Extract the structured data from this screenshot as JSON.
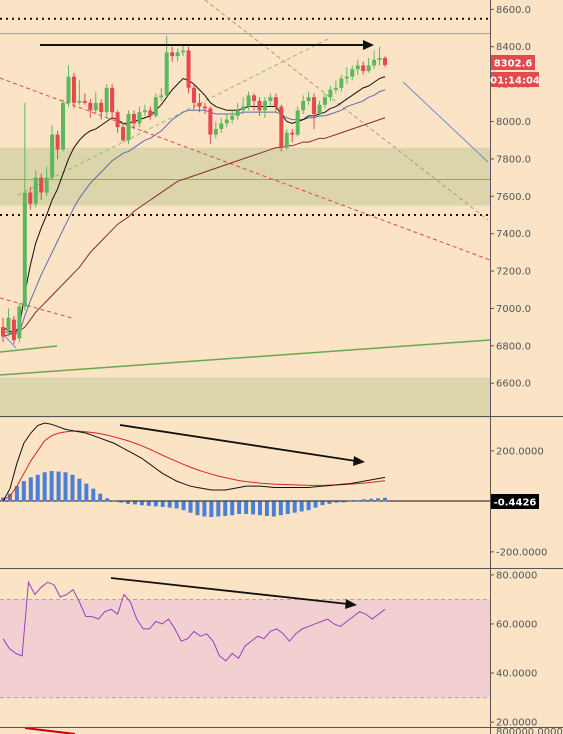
{
  "chart_data": [
    {
      "type": "candlestick",
      "title": "",
      "y_ticks": [
        "8600.0",
        "8400.0",
        "8200.0",
        "8000.0",
        "7800.0",
        "7600.0",
        "7400.0",
        "7200.0",
        "7000.0",
        "6800.0",
        "6600.0"
      ],
      "ylim": [
        6430,
        8650
      ],
      "last_price_label": "8302.6",
      "countdown_label": "01:14:04",
      "dotted_resistance": 8550,
      "dotted_support": 7500,
      "horizontal_lines": [
        8470,
        7690
      ],
      "support_zones": [
        [
          7550,
          7860
        ],
        [
          6410,
          6630
        ]
      ],
      "candles": [
        [
          6900,
          6850,
          6950,
          6820
        ],
        [
          6880,
          6950,
          7000,
          6850
        ],
        [
          6940,
          6830,
          6960,
          6810
        ],
        [
          6840,
          7010,
          7030,
          6820
        ],
        [
          7010,
          7620,
          8100,
          6990
        ],
        [
          7620,
          7560,
          7650,
          7530
        ],
        [
          7560,
          7700,
          7740,
          7540
        ],
        [
          7700,
          7620,
          7720,
          7580
        ],
        [
          7620,
          7700,
          7760,
          7600
        ],
        [
          7700,
          7930,
          7980,
          7690
        ],
        [
          7930,
          7850,
          7950,
          7800
        ],
        [
          7850,
          8100,
          8120,
          7840
        ],
        [
          8100,
          8240,
          8300,
          8080
        ],
        [
          8240,
          8100,
          8260,
          8070
        ],
        [
          8100,
          8110,
          8220,
          8090
        ],
        [
          8110,
          8100,
          8150,
          8090
        ],
        [
          8100,
          8060,
          8120,
          8020
        ],
        [
          8060,
          8100,
          8160,
          8040
        ],
        [
          8100,
          8050,
          8120,
          8010
        ],
        [
          8050,
          8180,
          8200,
          8030
        ],
        [
          8180,
          8050,
          8200,
          8020
        ],
        [
          8050,
          7970,
          8060,
          7940
        ],
        [
          7970,
          7900,
          7990,
          7890
        ],
        [
          7900,
          8040,
          8060,
          7880
        ],
        [
          8040,
          7990,
          8060,
          7960
        ],
        [
          7990,
          8050,
          8080,
          7970
        ],
        [
          8050,
          8060,
          8090,
          8030
        ],
        [
          8060,
          8030,
          8080,
          8010
        ],
        [
          8030,
          8130,
          8150,
          8020
        ],
        [
          8130,
          8140,
          8180,
          8110
        ],
        [
          8140,
          8370,
          8460,
          8130
        ],
        [
          8370,
          8350,
          8400,
          8320
        ],
        [
          8350,
          8370,
          8390,
          8320
        ],
        [
          8370,
          8380,
          8410,
          8350
        ],
        [
          8380,
          8180,
          8400,
          8150
        ],
        [
          8180,
          8100,
          8200,
          8060
        ],
        [
          8100,
          8080,
          8150,
          8050
        ],
        [
          8080,
          8070,
          8100,
          8040
        ],
        [
          8070,
          7930,
          8080,
          7880
        ],
        [
          7930,
          7960,
          8000,
          7910
        ],
        [
          7960,
          7990,
          8020,
          7940
        ],
        [
          7990,
          8010,
          8040,
          7970
        ],
        [
          8010,
          8030,
          8060,
          7990
        ],
        [
          8030,
          8060,
          8100,
          8010
        ],
        [
          8060,
          8080,
          8130,
          8040
        ],
        [
          8080,
          8140,
          8160,
          8060
        ],
        [
          8140,
          8110,
          8150,
          8060
        ],
        [
          8110,
          8060,
          8130,
          8030
        ],
        [
          8060,
          8110,
          8130,
          8020
        ],
        [
          8110,
          8130,
          8150,
          8080
        ],
        [
          8130,
          8080,
          8150,
          8050
        ],
        [
          8080,
          7860,
          8090,
          7840
        ],
        [
          7860,
          7940,
          7960,
          7850
        ],
        [
          7940,
          7930,
          7960,
          7890
        ],
        [
          7930,
          8060,
          8080,
          7920
        ],
        [
          8060,
          8110,
          8140,
          8040
        ],
        [
          8110,
          8130,
          8160,
          8090
        ],
        [
          8130,
          8040,
          8150,
          7960
        ],
        [
          8040,
          8090,
          8110,
          8030
        ],
        [
          8090,
          8130,
          8150,
          8070
        ],
        [
          8130,
          8170,
          8190,
          8110
        ],
        [
          8170,
          8180,
          8220,
          8150
        ],
        [
          8180,
          8230,
          8250,
          8160
        ],
        [
          8230,
          8240,
          8290,
          8200
        ],
        [
          8240,
          8280,
          8300,
          8220
        ],
        [
          8280,
          8300,
          8330,
          8250
        ],
        [
          8300,
          8270,
          8320,
          8250
        ],
        [
          8270,
          8300,
          8340,
          8260
        ],
        [
          8300,
          8330,
          8380,
          8280
        ],
        [
          8330,
          8340,
          8400,
          8300
        ],
        [
          8340,
          8302.6,
          8350,
          8290
        ]
      ],
      "ema_fast": [
        6900,
        6880,
        6870,
        6900,
        7080,
        7230,
        7350,
        7430,
        7500,
        7580,
        7640,
        7720,
        7800,
        7860,
        7900,
        7930,
        7950,
        7960,
        7980,
        8000,
        8020,
        8010,
        7990,
        7990,
        8000,
        8010,
        8020,
        8030,
        8060,
        8090,
        8130,
        8170,
        8200,
        8230,
        8220,
        8200,
        8170,
        8140,
        8100,
        8080,
        8070,
        8060,
        8060,
        8060,
        8070,
        8080,
        8080,
        8080,
        8080,
        8080,
        8080,
        8040,
        8000,
        7990,
        8000,
        8010,
        8030,
        8030,
        8040,
        8050,
        8070,
        8080,
        8100,
        8120,
        8140,
        8160,
        8180,
        8190,
        8210,
        8230,
        8240
      ],
      "ema_mid": [
        6880,
        6870,
        6860,
        6870,
        6960,
        7040,
        7110,
        7180,
        7240,
        7300,
        7360,
        7420,
        7480,
        7540,
        7590,
        7630,
        7670,
        7700,
        7730,
        7760,
        7790,
        7810,
        7830,
        7840,
        7860,
        7880,
        7900,
        7910,
        7930,
        7950,
        7980,
        8010,
        8030,
        8050,
        8060,
        8060,
        8060,
        8060,
        8050,
        8040,
        8040,
        8040,
        8040,
        8040,
        8050,
        8050,
        8050,
        8050,
        8050,
        8050,
        8050,
        8040,
        8020,
        8010,
        8010,
        8010,
        8020,
        8020,
        8030,
        8030,
        8040,
        8050,
        8060,
        8080,
        8090,
        8100,
        8110,
        8130,
        8140,
        8160,
        8170
      ],
      "ema_slow": [
        6850,
        6860,
        6870,
        6880,
        6900,
        6940,
        6980,
        7010,
        7040,
        7070,
        7100,
        7130,
        7160,
        7190,
        7220,
        7260,
        7300,
        7330,
        7360,
        7390,
        7420,
        7450,
        7470,
        7490,
        7520,
        7540,
        7560,
        7580,
        7600,
        7620,
        7640,
        7660,
        7680,
        7690,
        7700,
        7710,
        7720,
        7730,
        7740,
        7750,
        7760,
        7770,
        7780,
        7790,
        7800,
        7810,
        7820,
        7830,
        7840,
        7850,
        7860,
        7860,
        7870,
        7870,
        7880,
        7890,
        7890,
        7900,
        7910,
        7910,
        7920,
        7930,
        7940,
        7950,
        7960,
        7970,
        7980,
        7990,
        8000,
        8010,
        8020
      ]
    },
    {
      "type": "macd",
      "title": "",
      "y_ticks": [
        "200.0000",
        "-200.0000"
      ],
      "ylim": [
        -260,
        330
      ],
      "current_value_label": "-0.4426",
      "histogram": [
        15,
        30,
        60,
        80,
        95,
        105,
        115,
        120,
        118,
        115,
        105,
        90,
        70,
        50,
        30,
        12,
        2,
        -5,
        -10,
        -12,
        -15,
        -18,
        -20,
        -22,
        -25,
        -28,
        -35,
        -45,
        -55,
        -60,
        -62,
        -60,
        -58,
        -55,
        -50,
        -50,
        -52,
        -55,
        -58,
        -60,
        -55,
        -50,
        -45,
        -40,
        -35,
        -25,
        -15,
        -10,
        -5,
        -2,
        2,
        5,
        8,
        10,
        12,
        14
      ],
      "macd_line": [
        0,
        50,
        150,
        230,
        270,
        300,
        310,
        305,
        295,
        285,
        280,
        275,
        270,
        260,
        250,
        240,
        230,
        215,
        200,
        185,
        170,
        150,
        130,
        110,
        95,
        80,
        70,
        60,
        55,
        50,
        45,
        45,
        45,
        50,
        55,
        60,
        60,
        60,
        58,
        55,
        55,
        55,
        55,
        55,
        55,
        58,
        60,
        62,
        65,
        68,
        70,
        75,
        80,
        85,
        90,
        95
      ],
      "signal_line": [
        5,
        20,
        60,
        110,
        160,
        200,
        240,
        260,
        270,
        275,
        278,
        278,
        275,
        272,
        268,
        262,
        255,
        248,
        240,
        230,
        220,
        208,
        195,
        182,
        170,
        158,
        146,
        135,
        125,
        116,
        108,
        100,
        94,
        88,
        82,
        78,
        75,
        72,
        70,
        68,
        67,
        66,
        65,
        64,
        63,
        63,
        63,
        64,
        65,
        66,
        68,
        70,
        72,
        75,
        78,
        82
      ]
    },
    {
      "type": "rsi",
      "title": "",
      "y_ticks": [
        "80.0000",
        "60.0000",
        "40.0000",
        "20.0000"
      ],
      "ylim": [
        18,
        82
      ],
      "upper_band": 70,
      "lower_band": 30,
      "values": [
        54,
        50,
        48,
        47,
        77,
        72,
        75,
        77,
        76,
        71,
        72,
        74,
        69,
        63,
        63,
        62,
        65,
        66,
        64,
        72,
        69,
        62,
        58,
        58,
        61,
        60,
        62,
        58,
        53,
        54,
        57,
        55,
        56,
        53,
        47,
        45,
        48,
        46,
        51,
        53,
        55,
        54,
        57,
        58,
        56,
        53,
        56,
        58,
        59,
        60,
        61,
        62,
        60,
        59,
        61,
        63,
        65,
        64,
        62,
        64,
        66
      ]
    },
    {
      "type": "volume",
      "title": "",
      "y_ticks": [
        "800000.0000"
      ]
    }
  ]
}
